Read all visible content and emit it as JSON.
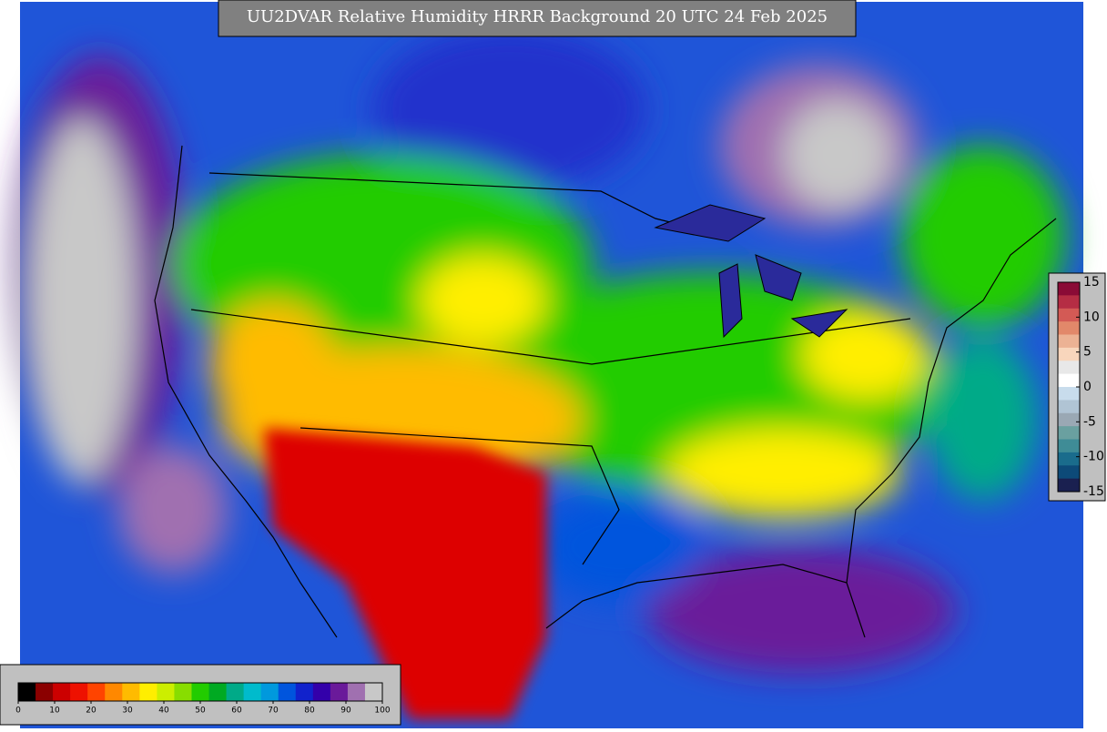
{
  "title": "UU2DVAR Relative Humidity HRRR Background  20 UTC 24 Feb 2025",
  "humidity_colorbar": {
    "ticks": [
      0,
      10,
      20,
      30,
      40,
      50,
      60,
      70,
      80,
      90,
      100
    ],
    "colors": [
      "#000000",
      "#8b0000",
      "#cc0000",
      "#ee1100",
      "#ff4400",
      "#ff8800",
      "#ffbb00",
      "#ffee00",
      "#ccee00",
      "#88dd00",
      "#22cc00",
      "#00aa22",
      "#00aa88",
      "#00bbcc",
      "#0099dd",
      "#0055dd",
      "#1122cc",
      "#3300aa",
      "#6a1a9a",
      "#a070b0",
      "#c8c8c8"
    ]
  },
  "difference_colorbar": {
    "ticks": [
      15,
      10,
      5,
      0,
      -5,
      -10,
      -15
    ],
    "colors": [
      "#8a0b36",
      "#b52d44",
      "#d35a55",
      "#e2886a",
      "#ecb294",
      "#f8d6bc",
      "#e8e8e8",
      "#ffffff",
      "#c8dcec",
      "#b0c4d4",
      "#9aa8b4",
      "#6aa0a0",
      "#3f8c96",
      "#1a6c8c",
      "#0d4a78",
      "#1a2050"
    ]
  }
}
